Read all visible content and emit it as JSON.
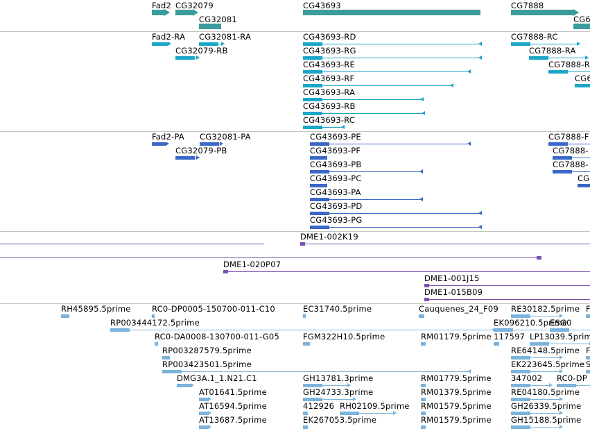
{
  "colors": {
    "gene": "#3a9c9c",
    "transcript": "#1aa6c8",
    "protein": "#3a68c8",
    "clone": "#7a52b0",
    "est": "#7ab4dc",
    "divider": "#c4c4c4"
  },
  "tracks": [
    {
      "name": "gene-track",
      "features": [
        {
          "label": "Fad2",
          "color": "gene",
          "lane": 0,
          "from": 219,
          "to": 243,
          "dir": "R",
          "label_pos": "above"
        },
        {
          "label": "CG32079",
          "color": "gene",
          "lane": 0,
          "from": 253,
          "to": 284,
          "dir": "R",
          "label_pos": "above"
        },
        {
          "label": "CG32081",
          "color": "gene",
          "lane": 1,
          "from": 287,
          "to": 319,
          "dir": "N",
          "label_pos": "above"
        },
        {
          "label": "CG43693",
          "color": "gene",
          "lane": 0,
          "from": 437,
          "to": 693,
          "dir": "N",
          "label_pos": "above"
        },
        {
          "label": "CG7888",
          "color": "gene",
          "lane": 0,
          "from": 737,
          "to": 833,
          "dir": "R",
          "label_pos": "above"
        },
        {
          "label": "CG6",
          "color": "gene",
          "lane": 1,
          "from": 827,
          "to": 851,
          "dir": "N",
          "label_pos": "above"
        }
      ]
    },
    {
      "name": "transcript-track",
      "features": [
        {
          "label": "Fad2-RA",
          "color": "transcript",
          "lane": 0,
          "from": 219,
          "to": 243,
          "dir": "R",
          "label_pos": "above"
        },
        {
          "label": "CG32081-RA",
          "color": "transcript",
          "lane": 0,
          "from": 287,
          "to": 320,
          "dir": "R",
          "label_pos": "above"
        },
        {
          "label": "CG32079-RB",
          "color": "transcript",
          "lane": 1,
          "from": 253,
          "to": 284,
          "dir": "R",
          "label_pos": "above"
        },
        {
          "label": "CG43693-RD",
          "color": "transcript",
          "lane": 0,
          "from": 437,
          "to": 695,
          "dir": "L",
          "label_pos": "above"
        },
        {
          "label": "CG43693-RG",
          "color": "transcript",
          "lane": 1,
          "from": 437,
          "to": 695,
          "dir": "L",
          "label_pos": "above"
        },
        {
          "label": "CG43693-RE",
          "color": "transcript",
          "lane": 2,
          "from": 437,
          "to": 679,
          "dir": "L",
          "label_pos": "above"
        },
        {
          "label": "CG43693-RF",
          "color": "transcript",
          "lane": 3,
          "from": 437,
          "to": 654,
          "dir": "L",
          "label_pos": "above"
        },
        {
          "label": "CG43693-RA",
          "color": "transcript",
          "lane": 4,
          "from": 437,
          "to": 611,
          "dir": "L",
          "label_pos": "above"
        },
        {
          "label": "CG43693-RB",
          "color": "transcript",
          "lane": 5,
          "from": 437,
          "to": 613,
          "dir": "L",
          "label_pos": "above"
        },
        {
          "label": "CG43693-RC",
          "color": "transcript",
          "lane": 6,
          "from": 437,
          "to": 497,
          "dir": "L",
          "label_pos": "above"
        },
        {
          "label": "CG7888-RC",
          "color": "transcript",
          "lane": 0,
          "from": 737,
          "to": 833,
          "dir": "R",
          "label_pos": "above"
        },
        {
          "label": "CG7888-RA",
          "color": "transcript",
          "lane": 1,
          "from": 763,
          "to": 845,
          "dir": "R",
          "label_pos": "above"
        },
        {
          "label": "CG7888-R",
          "color": "transcript",
          "lane": 2,
          "from": 791,
          "to": 851,
          "dir": "N",
          "label_pos": "above"
        },
        {
          "label": "CG6",
          "color": "transcript",
          "lane": 3,
          "from": 829,
          "to": 851,
          "dir": "N",
          "label_pos": "above"
        }
      ]
    },
    {
      "name": "protein-track",
      "features": [
        {
          "label": "Fad2-PA",
          "color": "protein",
          "lane": 0,
          "from": 219,
          "to": 240,
          "dir": "R",
          "label_pos": "above"
        },
        {
          "label": "CG32081-PA",
          "color": "protein",
          "lane": 0,
          "from": 288,
          "to": 318,
          "dir": "R",
          "label_pos": "above"
        },
        {
          "label": "CG32079-PB",
          "color": "protein",
          "lane": 1,
          "from": 253,
          "to": 284,
          "dir": "R",
          "label_pos": "above"
        },
        {
          "label": "CG43693-PE",
          "color": "protein",
          "lane": 0,
          "from": 447,
          "to": 679,
          "dir": "L",
          "label_pos": "above"
        },
        {
          "label": "CG43693-PF",
          "color": "protein",
          "lane": 1,
          "from": 447,
          "to": 472,
          "dir": "L",
          "label_pos": "above"
        },
        {
          "label": "CG43693-PB",
          "color": "protein",
          "lane": 2,
          "from": 447,
          "to": 610,
          "dir": "L",
          "label_pos": "above"
        },
        {
          "label": "CG43693-PC",
          "color": "protein",
          "lane": 3,
          "from": 447,
          "to": 472,
          "dir": "L",
          "label_pos": "above"
        },
        {
          "label": "CG43693-PA",
          "color": "protein",
          "lane": 4,
          "from": 447,
          "to": 610,
          "dir": "L",
          "label_pos": "above"
        },
        {
          "label": "CG43693-PD",
          "color": "protein",
          "lane": 5,
          "from": 447,
          "to": 695,
          "dir": "L",
          "label_pos": "above"
        },
        {
          "label": "CG43693-PG",
          "color": "protein",
          "lane": 6,
          "from": 447,
          "to": 695,
          "dir": "L",
          "label_pos": "above"
        },
        {
          "label": "CG7888-F",
          "color": "protein",
          "lane": 0,
          "from": 791,
          "to": 851,
          "dir": "N",
          "label_pos": "above"
        },
        {
          "label": "CG7888-",
          "color": "protein",
          "lane": 1,
          "from": 797,
          "to": 851,
          "dir": "N",
          "label_pos": "above"
        },
        {
          "label": "CG7888-",
          "color": "protein",
          "lane": 2,
          "from": 797,
          "to": 851,
          "dir": "N",
          "label_pos": "above"
        },
        {
          "label": "CG",
          "color": "protein",
          "lane": 3,
          "from": 833,
          "to": 851,
          "dir": "N",
          "label_pos": "above"
        }
      ]
    },
    {
      "name": "clone-track",
      "features": [
        {
          "label": "",
          "color": "clone",
          "lane": 0,
          "from": 0,
          "to": 381,
          "dir": "L",
          "label_pos": "above"
        },
        {
          "label": "DME1-002K19",
          "color": "clone",
          "lane": 0,
          "from": 433,
          "to": 851,
          "dir": "L",
          "label_pos": "above"
        },
        {
          "label": "",
          "color": "clone",
          "lane": 1,
          "from": 0,
          "to": 781,
          "dir": "R",
          "label_pos": "above"
        },
        {
          "label": "DME1-020P07",
          "color": "clone",
          "lane": 2,
          "from": 322,
          "to": 851,
          "dir": "L",
          "label_pos": "above"
        },
        {
          "label": "DME1-001J15",
          "color": "clone",
          "lane": 3,
          "from": 612,
          "to": 851,
          "dir": "L",
          "label_pos": "above"
        },
        {
          "label": "DME1-015B09",
          "color": "clone",
          "lane": 4,
          "from": 612,
          "to": 851,
          "dir": "L",
          "label_pos": "above"
        }
      ]
    },
    {
      "name": "est-track",
      "features": [
        {
          "label": "RH45895.5prime",
          "color": "est",
          "lane": 0,
          "from": 88,
          "to": 100,
          "dir": "N",
          "label_pos": "above"
        },
        {
          "label": "RC0-DP0005-150700-011-C10",
          "color": "est",
          "lane": 0,
          "from": 219,
          "to": 223,
          "dir": "L",
          "label_pos": "above"
        },
        {
          "label": "EC31740.5prime",
          "color": "est",
          "lane": 0,
          "from": 437,
          "to": 441,
          "dir": "L",
          "label_pos": "above"
        },
        {
          "label": "Cauquenes_24_F09",
          "color": "est",
          "lane": 0,
          "from": 604,
          "to": 612,
          "dir": "N",
          "label_pos": "above"
        },
        {
          "label": "RE30182.5prime",
          "color": "est",
          "lane": 0,
          "from": 737,
          "to": 808,
          "dir": "R",
          "label_pos": "above"
        },
        {
          "label": "F",
          "color": "est",
          "lane": 0,
          "from": 845,
          "to": 851,
          "dir": "N",
          "label_pos": "above"
        },
        {
          "label": "RP003444172.5prime",
          "color": "est",
          "lane": 1,
          "from": 159,
          "to": 714,
          "dir": "L",
          "label_pos": "above"
        },
        {
          "label": "EK096210.5prime",
          "color": "est",
          "lane": 1,
          "from": 712,
          "to": 790,
          "dir": "N",
          "label_pos": "above"
        },
        {
          "label": "ESG0",
          "color": "est",
          "lane": 1,
          "from": 793,
          "to": 851,
          "dir": "N",
          "label_pos": "above"
        },
        {
          "label": "RC0-DA0008-130700-011-G05",
          "color": "est",
          "lane": 2,
          "from": 223,
          "to": 228,
          "dir": "L",
          "label_pos": "above"
        },
        {
          "label": "FGM322H10.5prime",
          "color": "est",
          "lane": 2,
          "from": 437,
          "to": 447,
          "dir": "N",
          "label_pos": "above"
        },
        {
          "label": "RM01179.5prime",
          "color": "est",
          "lane": 2,
          "from": 607,
          "to": 614,
          "dir": "N",
          "label_pos": "above"
        },
        {
          "label": "117597",
          "color": "est",
          "lane": 2,
          "from": 712,
          "to": 720,
          "dir": "N",
          "label_pos": "above"
        },
        {
          "label": "LP13039.5prime",
          "color": "est",
          "lane": 2,
          "from": 764,
          "to": 851,
          "dir": "R",
          "label_pos": "above"
        },
        {
          "label": "RP003287579.5prime",
          "color": "est",
          "lane": 3,
          "from": 234,
          "to": 245,
          "dir": "N",
          "label_pos": "above"
        },
        {
          "label": "RE64148.5prime",
          "color": "est",
          "lane": 3,
          "from": 737,
          "to": 808,
          "dir": "R",
          "label_pos": "above"
        },
        {
          "label": "F",
          "color": "est",
          "lane": 3,
          "from": 845,
          "to": 851,
          "dir": "N",
          "label_pos": "above"
        },
        {
          "label": "RP003423501.5prime",
          "color": "est",
          "lane": 4,
          "from": 234,
          "to": 679,
          "dir": "L",
          "label_pos": "above"
        },
        {
          "label": "EK223645.5prime",
          "color": "est",
          "lane": 4,
          "from": 737,
          "to": 808,
          "dir": "R",
          "label_pos": "above"
        },
        {
          "label": "S",
          "color": "est",
          "lane": 4,
          "from": 845,
          "to": 851,
          "dir": "N",
          "label_pos": "above"
        },
        {
          "label": "DMG3A.1_1.N21.C1",
          "color": "est",
          "lane": 5,
          "from": 255,
          "to": 276,
          "dir": "R",
          "label_pos": "above"
        },
        {
          "label": "GH13781.3prime",
          "color": "est",
          "lane": 5,
          "from": 437,
          "to": 502,
          "dir": "R",
          "label_pos": "above"
        },
        {
          "label": "RM01779.5prime",
          "color": "est",
          "lane": 5,
          "from": 607,
          "to": 614,
          "dir": "N",
          "label_pos": "above"
        },
        {
          "label": "347002",
          "color": "est",
          "lane": 5,
          "from": 737,
          "to": 793,
          "dir": "R",
          "label_pos": "above"
        },
        {
          "label": "RC0-DP",
          "color": "est",
          "lane": 5,
          "from": 803,
          "to": 851,
          "dir": "N",
          "label_pos": "above"
        },
        {
          "label": "AT01641.5prime",
          "color": "est",
          "lane": 6,
          "from": 287,
          "to": 301,
          "dir": "R",
          "label_pos": "above"
        },
        {
          "label": "GH24733.3prime",
          "color": "est",
          "lane": 6,
          "from": 437,
          "to": 510,
          "dir": "R",
          "label_pos": "above"
        },
        {
          "label": "RM01379.5prime",
          "color": "est",
          "lane": 6,
          "from": 607,
          "to": 614,
          "dir": "N",
          "label_pos": "above"
        },
        {
          "label": "RE04180.5prime",
          "color": "est",
          "lane": 6,
          "from": 737,
          "to": 808,
          "dir": "R",
          "label_pos": "above"
        },
        {
          "label": "AT16594.5prime",
          "color": "est",
          "lane": 7,
          "from": 287,
          "to": 301,
          "dir": "R",
          "label_pos": "above"
        },
        {
          "label": "412926",
          "color": "est",
          "lane": 7,
          "from": 437,
          "to": 444,
          "dir": "N",
          "label_pos": "above"
        },
        {
          "label": "RH02109.5prime",
          "color": "est",
          "lane": 7,
          "from": 490,
          "to": 568,
          "dir": "R",
          "label_pos": "above"
        },
        {
          "label": "RM01579.5prime",
          "color": "est",
          "lane": 7,
          "from": 607,
          "to": 614,
          "dir": "N",
          "label_pos": "above"
        },
        {
          "label": "GH26339.5prime",
          "color": "est",
          "lane": 7,
          "from": 737,
          "to": 808,
          "dir": "R",
          "label_pos": "above"
        },
        {
          "label": "AT13687.5prime",
          "color": "est",
          "lane": 8,
          "from": 287,
          "to": 301,
          "dir": "R",
          "label_pos": "above"
        },
        {
          "label": "EK267053.5prime",
          "color": "est",
          "lane": 8,
          "from": 437,
          "to": 444,
          "dir": "N",
          "label_pos": "above"
        },
        {
          "label": "RM01579.5prime",
          "color": "est",
          "lane": 8,
          "from": 607,
          "to": 614,
          "dir": "N",
          "label_pos": "above"
        },
        {
          "label": "GH15188.5prime",
          "color": "est",
          "lane": 8,
          "from": 737,
          "to": 808,
          "dir": "R",
          "label_pos": "above"
        }
      ]
    }
  ]
}
